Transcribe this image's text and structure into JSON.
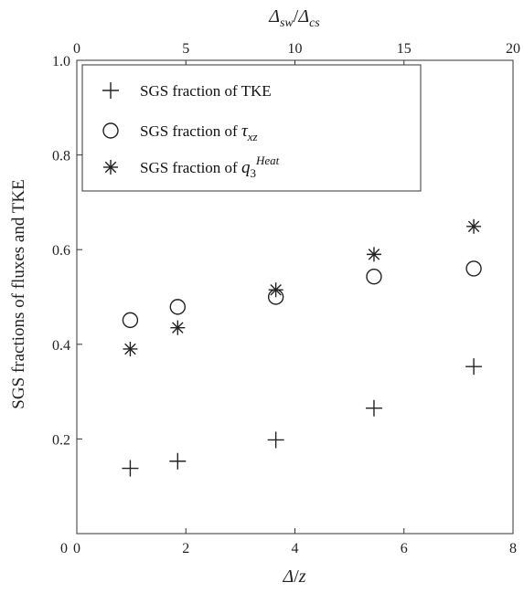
{
  "chart_data": {
    "type": "scatter",
    "xlabel": "Δ/z",
    "ylabel": "SGS fractions of fluxes and TKE",
    "x2label": "Δsw/Δcs",
    "xlim": [
      0,
      8
    ],
    "ylim": [
      0,
      1.0
    ],
    "x2lim": [
      0,
      20
    ],
    "xticks": [
      "0",
      "2",
      "4",
      "6",
      "8"
    ],
    "x2ticks": [
      "0",
      "5",
      "10",
      "15",
      "20"
    ],
    "yticks": [
      "0.2",
      "0.4",
      "0.6",
      "0.8",
      "1.0"
    ],
    "legend_position": "top-left",
    "series": [
      {
        "name": "SGS fraction of TKE",
        "marker": "plus",
        "x": [
          0.98,
          1.85,
          3.65,
          5.45,
          7.28
        ],
        "y": [
          0.138,
          0.153,
          0.198,
          0.265,
          0.353
        ]
      },
      {
        "name": "SGS fraction of τxz",
        "marker": "circle",
        "x": [
          0.98,
          1.85,
          3.65,
          5.45,
          7.28
        ],
        "y": [
          0.451,
          0.479,
          0.5,
          0.543,
          0.56
        ]
      },
      {
        "name": "SGS fraction of q3Heat",
        "marker": "star",
        "x": [
          0.98,
          1.85,
          3.65,
          5.45,
          7.28
        ],
        "y": [
          0.39,
          0.435,
          0.515,
          0.59,
          0.649
        ]
      }
    ]
  }
}
